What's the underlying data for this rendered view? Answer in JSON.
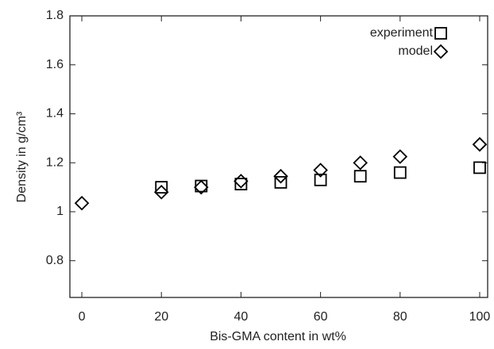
{
  "chart_data": {
    "type": "scatter",
    "x_label": "Bis-GMA content in wt%",
    "y_label": "Density in g/cm³",
    "series": [
      {
        "name": "experiment",
        "marker": "square",
        "color": "#000000",
        "x": [
          20,
          30,
          40,
          50,
          60,
          70,
          80,
          100
        ],
        "values": [
          1.1,
          1.105,
          1.113,
          1.12,
          1.13,
          1.145,
          1.16,
          1.18
        ]
      },
      {
        "name": "model",
        "marker": "diamond",
        "color": "#000000",
        "x": [
          0,
          20,
          30,
          40,
          50,
          60,
          70,
          80,
          100
        ],
        "values": [
          1.035,
          1.08,
          1.1,
          1.125,
          1.145,
          1.17,
          1.2,
          1.225,
          1.275
        ]
      }
    ],
    "xlim": [
      -3,
      102
    ],
    "xticks": [
      0,
      20,
      40,
      60,
      80,
      100
    ],
    "ylim": [
      0.65,
      1.8
    ],
    "yticks": [
      0.8,
      1,
      1.2,
      1.4,
      1.6,
      1.8
    ],
    "legend": "top-right",
    "grid": false
  }
}
